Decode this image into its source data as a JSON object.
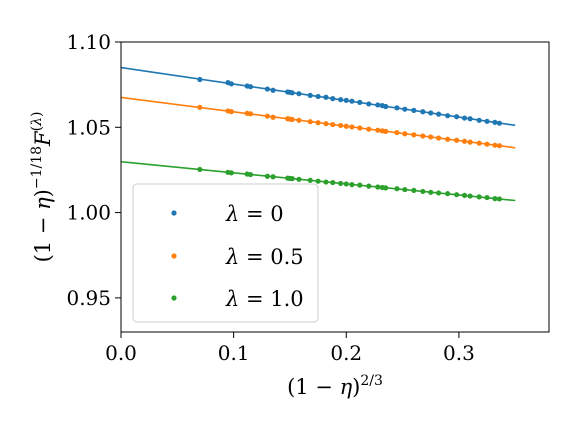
{
  "chart_data": {
    "type": "scatter",
    "xlabel": "(1 − η)^{2/3}",
    "ylabel": "(1 − η)^{−1/18} F^{(λ)}",
    "xlim": [
      0.0,
      0.38
    ],
    "ylim": [
      0.93,
      1.1
    ],
    "xticks": [
      "0.0",
      "0.1",
      "0.2",
      "0.3"
    ],
    "xtick_values": [
      0.0,
      0.1,
      0.2,
      0.3
    ],
    "yticks": [
      "0.95",
      "1.00",
      "1.05",
      "1.10"
    ],
    "ytick_values": [
      0.95,
      1.0,
      1.05,
      1.1
    ],
    "legend_position": "lower-left",
    "grid": false,
    "fit_x_range": [
      0.0,
      0.35
    ],
    "x": [
      0.07,
      0.095,
      0.098,
      0.112,
      0.115,
      0.13,
      0.135,
      0.148,
      0.15,
      0.152,
      0.158,
      0.168,
      0.175,
      0.182,
      0.188,
      0.195,
      0.2,
      0.205,
      0.212,
      0.22,
      0.228,
      0.232,
      0.235,
      0.245,
      0.252,
      0.26,
      0.268,
      0.275,
      0.282,
      0.29,
      0.298,
      0.305,
      0.31,
      0.318,
      0.325,
      0.332,
      0.336
    ],
    "series": [
      {
        "legend_label": [
          "λ",
          " = 0"
        ],
        "color": "#1f77b4",
        "intercept": 1.085,
        "slope": -0.0967,
        "values": [
          1.078,
          1.0762,
          1.0755,
          1.0742,
          1.0738,
          1.0724,
          1.0717,
          1.0707,
          1.0705,
          1.0702,
          1.0697,
          1.0687,
          1.0681,
          1.0676,
          1.0668,
          1.0662,
          1.0658,
          1.0653,
          1.0646,
          1.0637,
          1.0631,
          1.0627,
          1.0622,
          1.0614,
          1.0606,
          1.0599,
          1.0591,
          1.0584,
          1.0577,
          1.0568,
          1.0562,
          1.0554,
          1.055,
          1.0541,
          1.0535,
          1.0529,
          1.0524
        ]
      },
      {
        "legend_label": [
          "λ",
          " = 0.5"
        ],
        "color": "#ff7f0e",
        "intercept": 1.0675,
        "slope": -0.0843,
        "values": [
          1.0617,
          1.0596,
          1.0592,
          1.0582,
          1.0579,
          1.0565,
          1.0559,
          1.055,
          1.0548,
          1.0546,
          1.0541,
          1.0533,
          1.0527,
          1.0521,
          1.0516,
          1.0511,
          1.0506,
          1.0502,
          1.0496,
          1.0489,
          1.0483,
          1.0479,
          1.0476,
          1.0469,
          1.0462,
          1.0456,
          1.0449,
          1.0443,
          1.0437,
          1.043,
          1.0424,
          1.0418,
          1.0413,
          1.0407,
          1.0401,
          1.0395,
          1.0392
        ]
      },
      {
        "legend_label": [
          "λ",
          " = 1.0"
        ],
        "color": "#2ca02c",
        "intercept": 1.0298,
        "slope": -0.0649,
        "values": [
          1.0253,
          1.0236,
          1.0233,
          1.0226,
          1.0223,
          1.0213,
          1.021,
          1.0202,
          1.02,
          1.0199,
          1.0195,
          1.0189,
          1.0184,
          1.0179,
          1.0176,
          1.0171,
          1.0168,
          1.0164,
          1.0161,
          1.0155,
          1.015,
          1.0147,
          1.0145,
          1.014,
          1.0135,
          1.013,
          1.0124,
          1.0119,
          1.0115,
          1.0111,
          1.0105,
          1.0101,
          1.0097,
          1.0092,
          1.0088,
          1.0082,
          1.008
        ]
      }
    ]
  }
}
